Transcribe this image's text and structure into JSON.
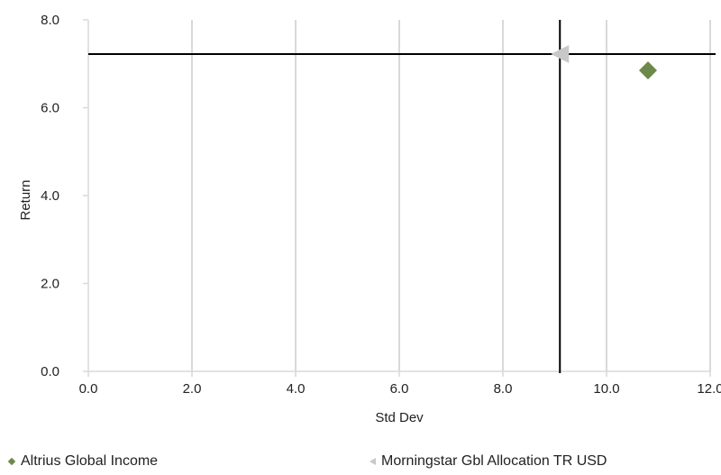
{
  "chart_data": {
    "type": "scatter",
    "xlabel": "Std Dev",
    "ylabel": "Return",
    "xlim": [
      0,
      12
    ],
    "ylim": [
      0,
      8
    ],
    "x_ticks": [
      "0.0",
      "2.0",
      "4.0",
      "6.0",
      "8.0",
      "10.0",
      "12.0"
    ],
    "y_ticks": [
      "0.0",
      "2.0",
      "4.0",
      "6.0",
      "8.0"
    ],
    "grid": "vertical",
    "legend_position": "bottom",
    "series": [
      {
        "name": "Altrius Global Income",
        "marker": "diamond",
        "color": "#6b8a4a",
        "x": 10.8,
        "y": 6.85
      },
      {
        "name": "Morningstar Gbl Allocation TR USD",
        "marker": "triangle-left",
        "color": "#c8c8c8",
        "x": 9.1,
        "y": 7.22
      }
    ],
    "crosshair": {
      "x": 9.1,
      "y": 7.22,
      "color": "#000000"
    }
  }
}
